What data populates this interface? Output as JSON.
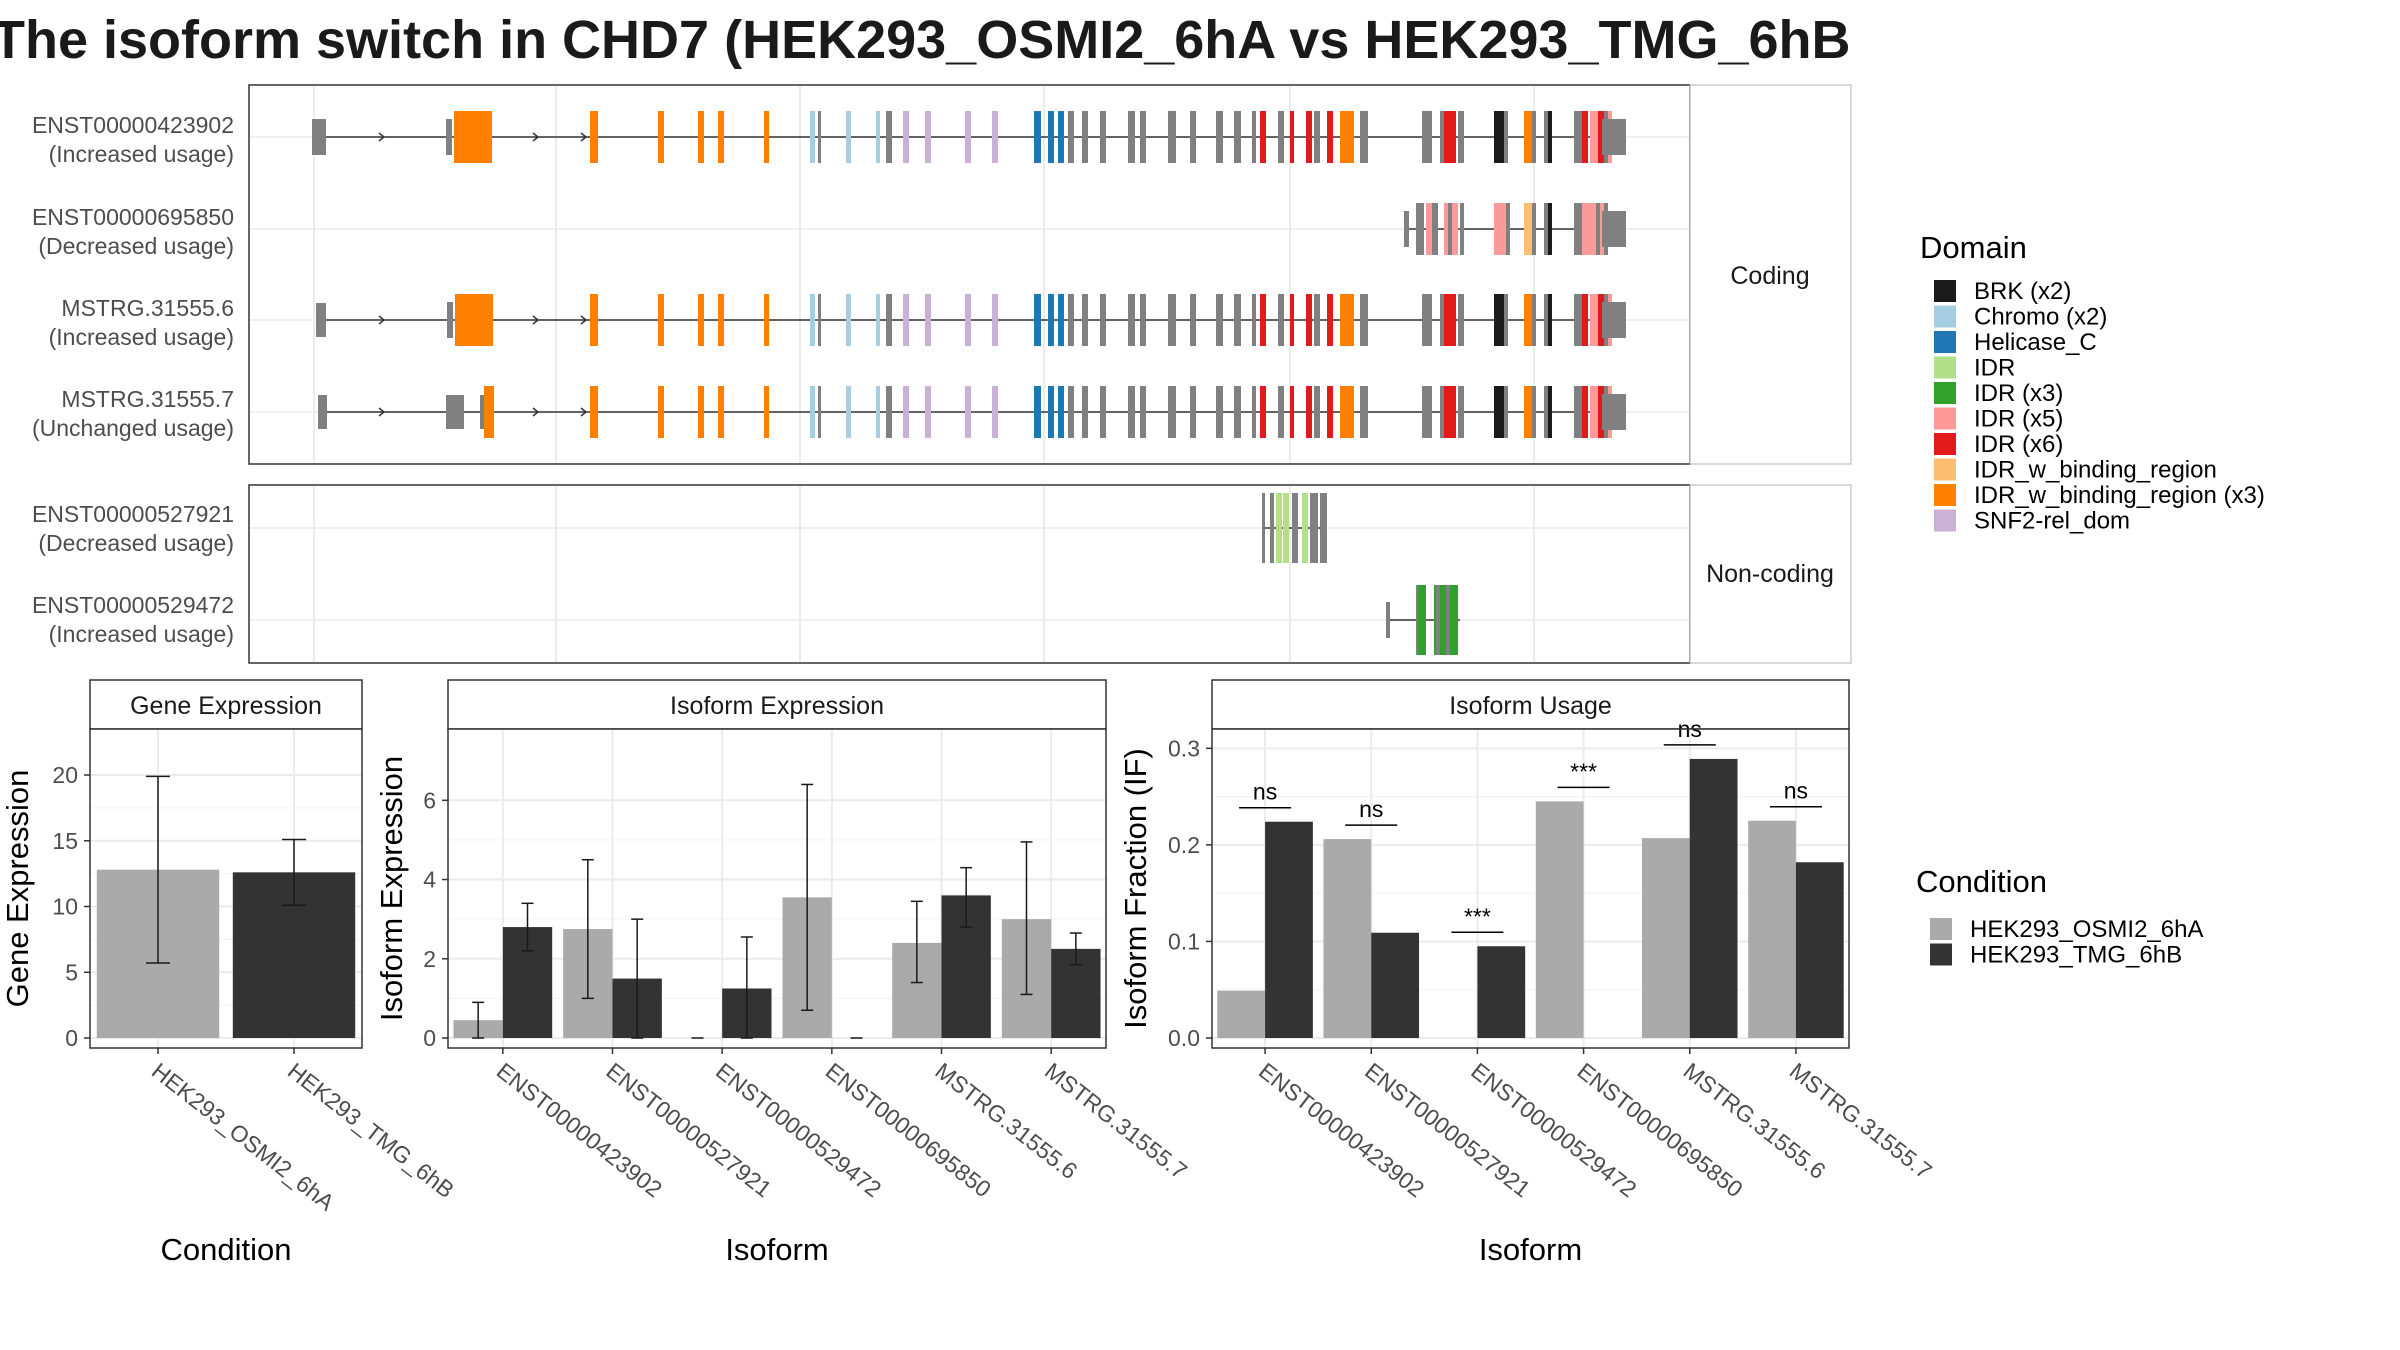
{
  "title": "The isoform switch in CHD7 (HEK293_OSMI2_6hA vs HEK293_TMG_6hB",
  "structure": {
    "coding_strip": "Coding",
    "noncoding_strip": "Non-coding",
    "coding": [
      {
        "id": "ENST00000423902",
        "usage": "(Increased usage)"
      },
      {
        "id": "ENST00000695850",
        "usage": "(Decreased usage)"
      },
      {
        "id": "MSTRG.31555.6",
        "usage": "(Increased usage)"
      },
      {
        "id": "MSTRG.31555.7",
        "usage": "(Unchanged usage)"
      }
    ],
    "noncoding": [
      {
        "id": "ENST00000527921",
        "usage": "(Decreased usage)"
      },
      {
        "id": "ENST00000529472",
        "usage": "(Increased usage)"
      }
    ]
  },
  "domain_legend": {
    "title": "Domain",
    "items": [
      {
        "label": "BRK (x2)",
        "color": "#1a1a1a"
      },
      {
        "label": "Chromo (x2)",
        "color": "#a6cee3"
      },
      {
        "label": "Helicase_C",
        "color": "#1f78b4"
      },
      {
        "label": "IDR",
        "color": "#b2df8a"
      },
      {
        "label": "IDR (x3)",
        "color": "#33a02c"
      },
      {
        "label": "IDR (x5)",
        "color": "#fb9a99"
      },
      {
        "label": "IDR (x6)",
        "color": "#e31a1c"
      },
      {
        "label": "IDR_w_binding_region",
        "color": "#fdbf6f"
      },
      {
        "label": "IDR_w_binding_region (x3)",
        "color": "#ff7f00"
      },
      {
        "label": "SNF2-rel_dom",
        "color": "#cab2d6"
      }
    ]
  },
  "condition_legend": {
    "title": "Condition",
    "items": [
      {
        "label": "HEK293_OSMI2_6hA",
        "color": "#aaaaaa"
      },
      {
        "label": "HEK293_TMG_6hB",
        "color": "#333333"
      }
    ]
  },
  "chart_data": [
    {
      "type": "bar",
      "panel": "Gene Expression",
      "xlabel": "Condition",
      "ylabel": "Gene Expression",
      "ylim": [
        0,
        23.5
      ],
      "yticks": [
        0,
        5,
        10,
        15,
        20
      ],
      "categories": [
        "HEK293_OSMI2_6hA",
        "HEK293_TMG_6hB"
      ],
      "values": [
        12.8,
        12.6
      ],
      "error": [
        [
          5.7,
          19.9
        ],
        [
          10.1,
          15.1
        ]
      ],
      "colors": [
        "#aaaaaa",
        "#333333"
      ]
    },
    {
      "type": "bar",
      "panel": "Isoform Expression",
      "xlabel": "Isoform",
      "ylabel": "Isoform Expression",
      "ylim": [
        0,
        7.8
      ],
      "yticks": [
        0,
        2,
        4,
        6
      ],
      "categories": [
        "ENST00000423902",
        "ENST00000527921",
        "ENST00000529472",
        "ENST00000695850",
        "MSTRG.31555.6",
        "MSTRG.31555.7"
      ],
      "series": [
        {
          "name": "HEK293_OSMI2_6hA",
          "color": "#aaaaaa",
          "values": [
            0.45,
            2.75,
            0.0,
            3.55,
            2.4,
            3.0
          ],
          "error": [
            [
              0.0,
              0.9
            ],
            [
              1.0,
              4.5
            ],
            [
              0.0,
              0.0
            ],
            [
              0.7,
              6.4
            ],
            [
              1.4,
              3.45
            ],
            [
              1.1,
              4.95
            ]
          ]
        },
        {
          "name": "HEK293_TMG_6hB",
          "color": "#333333",
          "values": [
            2.8,
            1.5,
            1.25,
            0.0,
            3.6,
            2.25
          ],
          "error": [
            [
              2.2,
              3.4
            ],
            [
              0.0,
              3.0
            ],
            [
              0.0,
              2.55
            ],
            [
              0.0,
              0.0
            ],
            [
              2.8,
              4.3
            ],
            [
              1.85,
              2.65
            ]
          ]
        }
      ]
    },
    {
      "type": "bar",
      "panel": "Isoform Usage",
      "xlabel": "Isoform",
      "ylabel": "Isoform Fraction (IF)",
      "ylim": [
        0,
        0.32
      ],
      "yticks": [
        0.0,
        0.1,
        0.2,
        0.3
      ],
      "ytick_labels": [
        "0.0",
        "0.1",
        "0.2",
        "0.3"
      ],
      "categories": [
        "ENST00000423902",
        "ENST00000527921",
        "ENST00000529472",
        "ENST00000695850",
        "MSTRG.31555.6",
        "MSTRG.31555.7"
      ],
      "series": [
        {
          "name": "HEK293_OSMI2_6hA",
          "color": "#aaaaaa",
          "values": [
            0.049,
            0.206,
            0.0,
            0.245,
            0.207,
            0.225
          ]
        },
        {
          "name": "HEK293_TMG_6hB",
          "color": "#333333",
          "values": [
            0.224,
            0.109,
            0.095,
            0.0,
            0.289,
            0.182
          ]
        }
      ],
      "significance": [
        "ns",
        "ns",
        "***",
        "***",
        "ns",
        "ns"
      ]
    }
  ]
}
